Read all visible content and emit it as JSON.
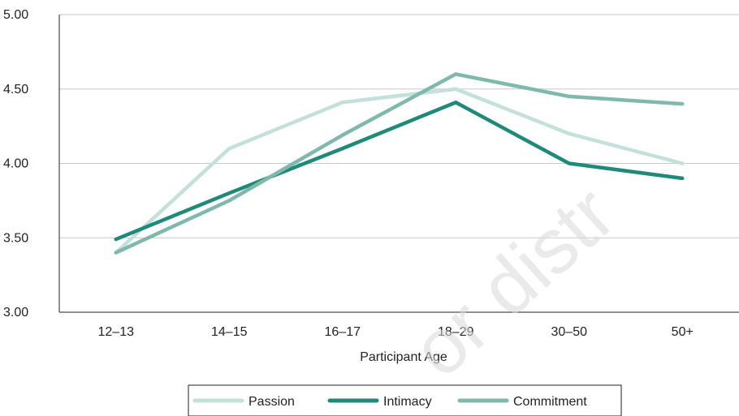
{
  "chart_data": {
    "type": "line",
    "categories": [
      "12–13",
      "14–15",
      "16–17",
      "18–29",
      "30–50",
      "50+"
    ],
    "xlabel": "Participant Age",
    "ylabel": "",
    "ylim": [
      3.0,
      5.0
    ],
    "yticks": [
      "3.00",
      "3.50",
      "4.00",
      "4.50",
      "5.00"
    ],
    "ytick_values": [
      3.0,
      3.5,
      4.0,
      4.5,
      5.0
    ],
    "grid": true,
    "legend_position": "bottom",
    "series": [
      {
        "name": "Passion",
        "color": "#c3e0da",
        "values": [
          3.4,
          4.1,
          4.41,
          4.5,
          4.2,
          4.0
        ]
      },
      {
        "name": "Intimacy",
        "color": "#1f8a7a",
        "values": [
          3.49,
          3.8,
          4.1,
          4.41,
          4.0,
          3.9
        ]
      },
      {
        "name": "Commitment",
        "color": "#7fb8ad",
        "values": [
          3.4,
          3.75,
          4.19,
          4.6,
          4.45,
          4.4
        ]
      }
    ]
  },
  "watermark_text": "or distr"
}
